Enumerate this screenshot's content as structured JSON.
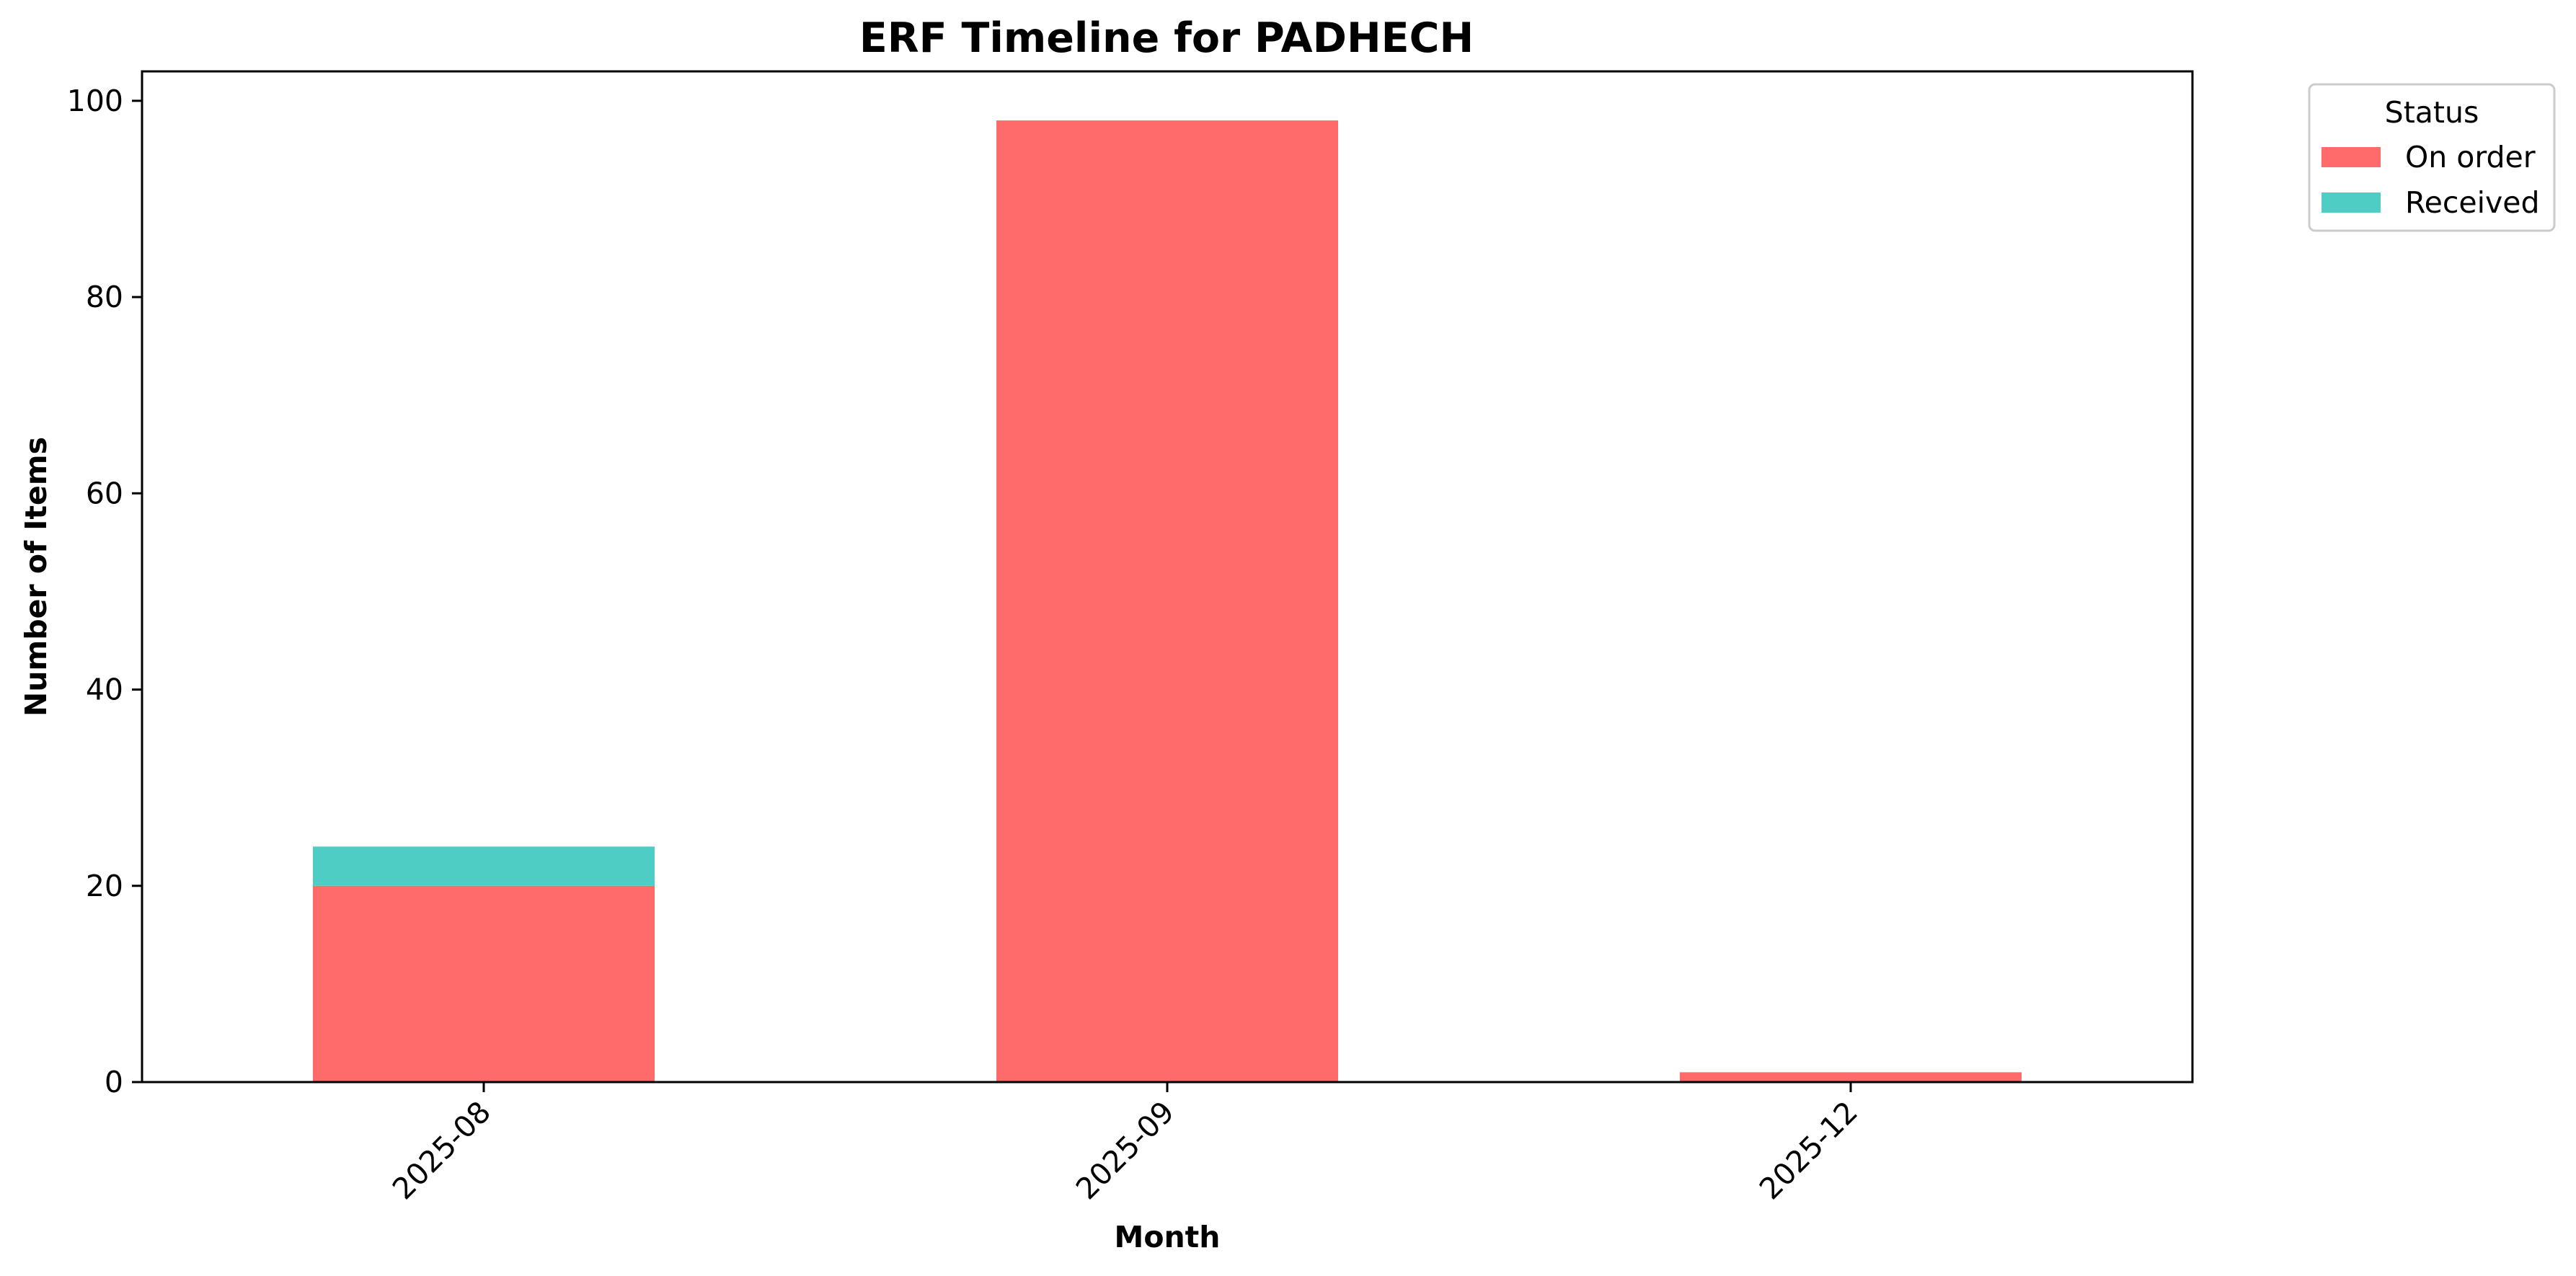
{
  "chart_data": {
    "type": "bar",
    "stacked": true,
    "title": "ERF Timeline for PADHECH",
    "xlabel": "Month",
    "ylabel": "Number of Items",
    "categories": [
      "2025-08",
      "2025-09",
      "2025-12"
    ],
    "series": [
      {
        "name": "On order",
        "color": "#ff6b6b",
        "values": [
          20,
          98,
          1
        ]
      },
      {
        "name": "Received",
        "color": "#4ecdc4",
        "values": [
          4,
          0,
          0
        ]
      }
    ],
    "ylim": [
      0,
      103
    ],
    "yticks": [
      0,
      20,
      40,
      60,
      80,
      100
    ],
    "grid": false,
    "legend": {
      "title": "Status",
      "placement": "outside-top-right"
    }
  }
}
